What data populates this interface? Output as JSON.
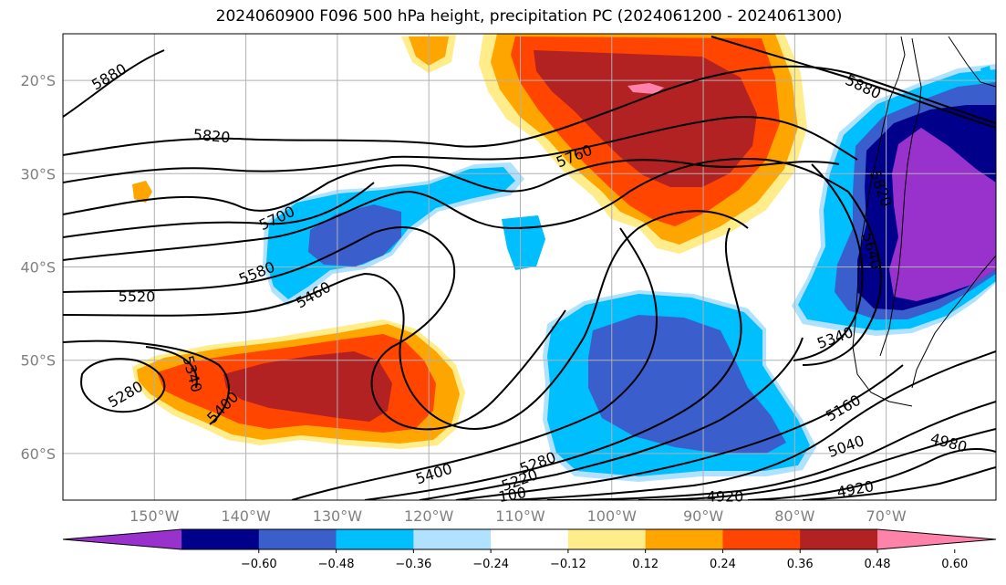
{
  "title": "2024060900 F096 500 hPa height, precipitation PC (2024061200 - 2024061300)",
  "map": {
    "lon_range": [
      -160,
      -58
    ],
    "lat_range": [
      -65,
      -15
    ],
    "lon_ticks": [
      "150°W",
      "140°W",
      "130°W",
      "120°W",
      "110°W",
      "100°W",
      "90°W",
      "80°W",
      "70°W"
    ],
    "lat_ticks": [
      "20°S",
      "30°S",
      "40°S",
      "50°S",
      "60°S"
    ],
    "grid": true
  },
  "colorbar": {
    "tick_labels": [
      "−0.60",
      "−0.48",
      "−0.36",
      "−0.24",
      "−0.12",
      "0.12",
      "0.24",
      "0.36",
      "0.48",
      "0.60"
    ],
    "colors": [
      "#9932cc",
      "#00008b",
      "#3a5fcd",
      "#00bfff",
      "#b0e2ff",
      "#ffffff",
      "#ffec8b",
      "#ffa500",
      "#ff4500",
      "#b22222",
      "#ff82ab"
    ],
    "extend": "both"
  },
  "contour_labels": [
    {
      "text": "5880"
    },
    {
      "text": "5820"
    },
    {
      "text": "5760"
    },
    {
      "text": "5700"
    },
    {
      "text": "5580"
    },
    {
      "text": "5520"
    },
    {
      "text": "5460"
    },
    {
      "text": "5400"
    },
    {
      "text": "5340"
    },
    {
      "text": "5280"
    },
    {
      "text": "5400"
    },
    {
      "text": "5280"
    },
    {
      "text": "5220"
    },
    {
      "text": "100"
    },
    {
      "text": "4920"
    },
    {
      "text": "4920"
    },
    {
      "text": "5340"
    },
    {
      "text": "5160"
    },
    {
      "text": "5040"
    },
    {
      "text": "4980"
    },
    {
      "text": "5880"
    },
    {
      "text": "5820"
    },
    {
      "text": "5640"
    }
  ]
}
